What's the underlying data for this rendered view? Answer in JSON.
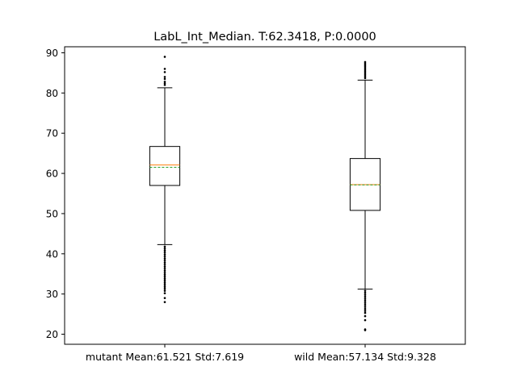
{
  "chart_data": {
    "type": "boxplot",
    "title": "LabL_Int_Median. T:62.3418, P:0.0000",
    "xlabel": "",
    "ylabel": "",
    "ylim": [
      17.5,
      91.5
    ],
    "yticks": [
      20,
      30,
      40,
      50,
      60,
      70,
      80,
      90
    ],
    "ytick_labels": [
      "20",
      "30",
      "40",
      "50",
      "60",
      "70",
      "80",
      "90"
    ],
    "categories": [
      "mutant Mean:61.521 Std:7.619",
      "wild Mean:57.134 Std:9.328"
    ],
    "series": [
      {
        "name": "mutant",
        "q1": 57.0,
        "median": 62.1,
        "q3": 66.7,
        "mean": 61.521,
        "whisker_low": 42.3,
        "whisker_high": 81.3,
        "outliers": [
          28.0,
          29.0,
          30.2,
          30.8,
          31.3,
          31.8,
          32.3,
          32.8,
          33.3,
          33.8,
          34.3,
          34.8,
          35.3,
          35.8,
          36.3,
          36.8,
          37.3,
          37.8,
          38.3,
          38.8,
          39.3,
          39.8,
          40.3,
          40.8,
          41.3,
          41.8,
          82.0,
          82.4,
          82.8,
          83.5,
          84.0,
          85.2,
          86.0,
          89.0
        ]
      },
      {
        "name": "wild",
        "q1": 50.8,
        "median": 57.2,
        "q3": 63.7,
        "mean": 57.134,
        "whisker_low": 31.2,
        "whisker_high": 83.2,
        "outliers": [
          21.0,
          21.2,
          23.5,
          24.5,
          25.3,
          25.8,
          26.3,
          26.8,
          27.3,
          27.8,
          28.3,
          28.8,
          29.3,
          29.8,
          30.3,
          30.8,
          83.7,
          84.1,
          84.5,
          84.9,
          85.3,
          85.7,
          86.1,
          86.5,
          86.9,
          87.3,
          87.7
        ]
      }
    ],
    "colors": {
      "box": "#000000",
      "median": "#ff7f0e",
      "mean": "#2ca02c",
      "outlier": "#000000"
    }
  }
}
